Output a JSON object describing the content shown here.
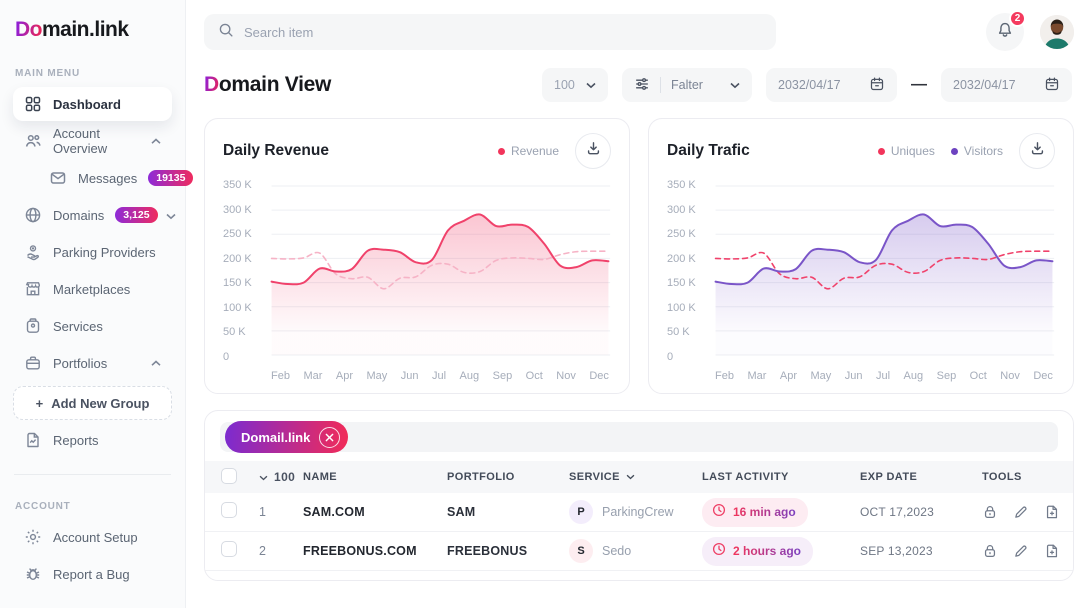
{
  "brand": {
    "logo_gradient": "Do",
    "logo_main": "main",
    "logo_dot": ".",
    "logo_link": "link"
  },
  "colors": {
    "accent_red": "#f2355b",
    "accent_purple": "#6d43c0",
    "gradient_start": "#8f1fd6",
    "gradient_end": "#e3255f"
  },
  "sidebar": {
    "menu_label": "MAIN MENU",
    "account_label": "ACCOUNT",
    "items": {
      "dashboard": {
        "label": "Dashboard"
      },
      "account_overview": {
        "label": "Account Overview"
      },
      "messages": {
        "label": "Messages",
        "badge": "19135"
      },
      "domains": {
        "label": "Domains",
        "badge": "3,125"
      },
      "parking_providers": {
        "label": "Parking Providers"
      },
      "marketplaces": {
        "label": "Marketplaces"
      },
      "services": {
        "label": "Services"
      },
      "portfolios": {
        "label": "Portfolios"
      },
      "add_new_group": {
        "label": "Add New Group",
        "plus": "+"
      },
      "reports": {
        "label": "Reports"
      },
      "account_setup": {
        "label": "Account Setup"
      },
      "report_a_bug": {
        "label": "Report a Bug"
      }
    }
  },
  "header": {
    "search_placeholder": "Search item",
    "notification_count": "2"
  },
  "toolbar": {
    "title_accent": "D",
    "title_rest": "omain View",
    "count_select": "100",
    "filter_label": "Falter",
    "date_from": "2032/04/17",
    "date_sep": "—",
    "date_to": "2032/04/17"
  },
  "chart_data": [
    {
      "type": "area",
      "title": "Daily Revenue",
      "legend": [
        {
          "label": "Revenue",
          "color": "#f2355b"
        }
      ],
      "x_labels": [
        "Feb",
        "Mar",
        "Apr",
        "May",
        "Jun",
        "Jul",
        "Aug",
        "Sep",
        "Oct",
        "Nov",
        "Dec"
      ],
      "y_tick_labels": [
        "350 K",
        "300 K",
        "250 K",
        "200 K",
        "150 K",
        "100 K",
        "50 K",
        "0"
      ],
      "ylim": [
        0,
        350
      ],
      "unit": "K",
      "grid": true,
      "series": [
        {
          "name": "Revenue",
          "style": "solid",
          "color": "#f0426b",
          "fill": true,
          "values": [
            152,
            147,
            150,
            179,
            173,
            178,
            216,
            218,
            213,
            192,
            197,
            258,
            278,
            291,
            267,
            270,
            265,
            230,
            185,
            182,
            196,
            194
          ]
        },
        {
          "name": "unlabeled-comparison",
          "style": "dashed",
          "color": "#f6b3c6",
          "fill": false,
          "values": [
            200,
            199,
            201,
            211,
            168,
            158,
            161,
            137,
            159,
            162,
            186,
            188,
            171,
            173,
            196,
            201,
            200,
            198,
            208,
            214,
            215,
            215
          ]
        }
      ]
    },
    {
      "type": "area",
      "title": "Daily Trafic",
      "legend": [
        {
          "label": "Uniques",
          "color": "#f2355b"
        },
        {
          "label": "Visitors",
          "color": "#6d43c0"
        }
      ],
      "x_labels": [
        "Feb",
        "Mar",
        "Apr",
        "May",
        "Jun",
        "Jul",
        "Aug",
        "Sep",
        "Oct",
        "Nov",
        "Dec"
      ],
      "y_tick_labels": [
        "350 K",
        "300 K",
        "250 K",
        "200 K",
        "150 K",
        "100 K",
        "50 K",
        "0"
      ],
      "ylim": [
        0,
        350
      ],
      "unit": "K",
      "grid": true,
      "series": [
        {
          "name": "Visitors",
          "style": "solid",
          "color": "#7a55c8",
          "fill": true,
          "values": [
            152,
            147,
            150,
            179,
            173,
            178,
            216,
            218,
            213,
            192,
            197,
            258,
            278,
            291,
            267,
            270,
            265,
            230,
            185,
            182,
            196,
            194
          ]
        },
        {
          "name": "Uniques",
          "style": "dashed",
          "color": "#f0426b",
          "fill": false,
          "values": [
            200,
            199,
            201,
            211,
            168,
            158,
            161,
            137,
            159,
            162,
            186,
            188,
            171,
            173,
            196,
            201,
            200,
            198,
            208,
            214,
            215,
            215
          ]
        }
      ]
    }
  ],
  "table": {
    "chip_label": "Domail.link",
    "header": {
      "count": "100",
      "name": "NAME",
      "portfolio": "PORTFOLIO",
      "service": "SERVICE",
      "last_activity": "LAST ACTIVITY",
      "exp_date": "EXP DATE",
      "tools": "TOOLS"
    },
    "rows": [
      {
        "num": "1",
        "name": "SAM.COM",
        "portfolio": "SAM",
        "service_initial": "P",
        "service": "ParkingCrew",
        "initial_bg": "#f3edfc",
        "activity": "16 min ago",
        "activity_bg": "#fdecf2",
        "exp": "OCT 17,2023"
      },
      {
        "num": "2",
        "name": "FREEBONUS.COM",
        "portfolio": "FREEBONUS",
        "service_initial": "S",
        "service": "Sedo",
        "initial_bg": "#fdedf0",
        "activity": "2 hours ago",
        "activity_bg": "#f6eef9",
        "exp": "SEP 13,2023"
      }
    ]
  }
}
